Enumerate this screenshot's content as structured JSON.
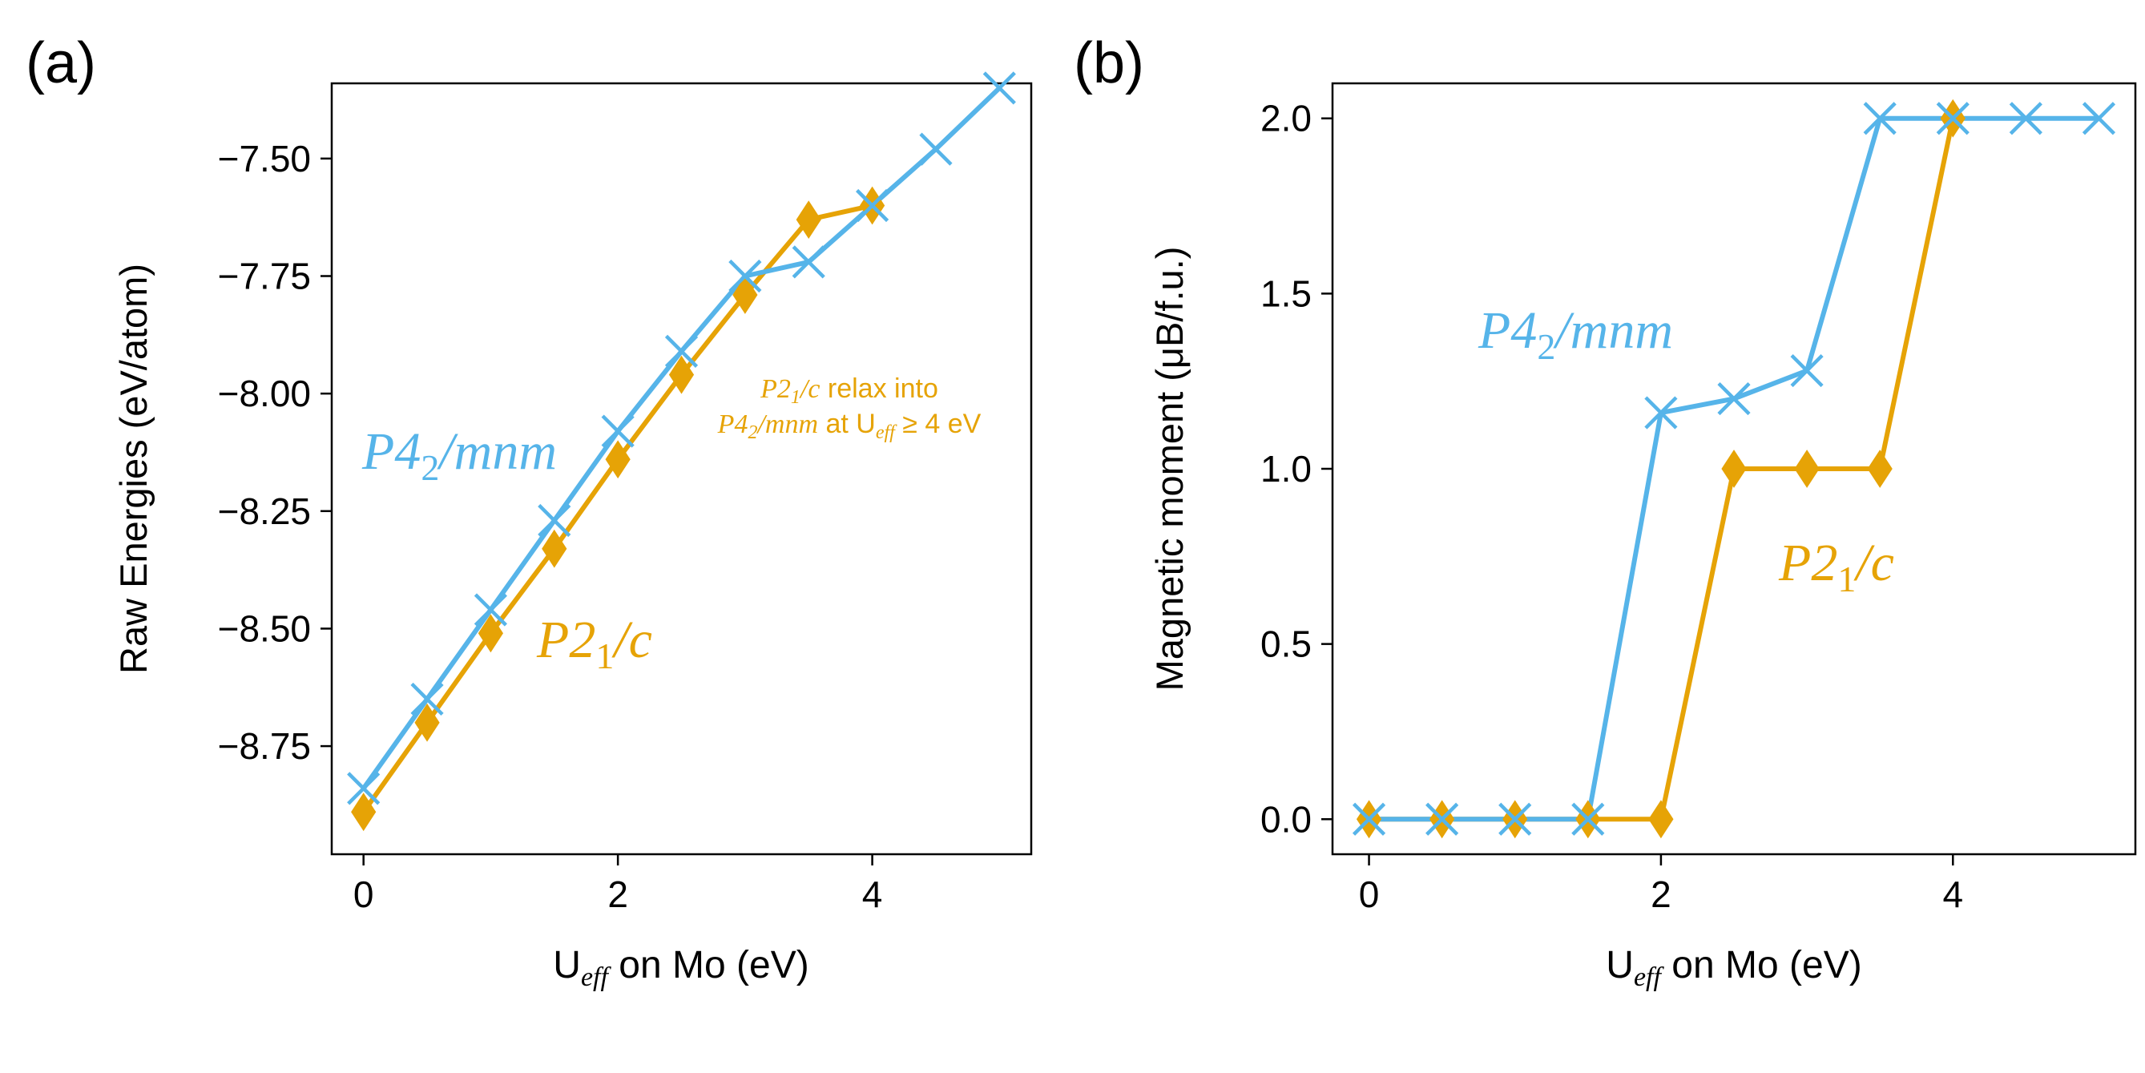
{
  "colors": {
    "p42": "#56b4e9",
    "p21": "#e6a306",
    "axis": "#000000"
  },
  "panels": [
    {
      "label": "(a)",
      "chart_data": {
        "type": "line",
        "xlabel": "U",
        "xlabel_sub": "eff",
        "xlabel_rest": " on Mo (eV)",
        "ylabel": "Raw Energies (eV/atom)",
        "xlim": [
          -0.25,
          5.25
        ],
        "ylim": [
          -8.98,
          -7.34
        ],
        "xticks": [
          0,
          2,
          4
        ],
        "xtick_labels": [
          "0",
          "2",
          "4"
        ],
        "yticks": [
          -7.5,
          -7.75,
          -8.0,
          -8.25,
          -8.5,
          -8.75
        ],
        "ytick_labels": [
          "−7.50",
          "−7.75",
          "−8.00",
          "−8.25",
          "−8.50",
          "−8.75"
        ],
        "series": [
          {
            "name": "P42/mnm",
            "marker": "x",
            "color_key": "p42",
            "x": [
              0,
              0.5,
              1,
              1.5,
              2,
              2.5,
              3,
              3.5,
              4,
              4.5,
              5
            ],
            "y": [
              -8.84,
              -8.65,
              -8.46,
              -8.27,
              -8.08,
              -7.91,
              -7.75,
              -7.72,
              -7.6,
              -7.48,
              -7.35
            ]
          },
          {
            "name": "P21/c",
            "marker": "d",
            "color_key": "p21",
            "x": [
              0,
              0.5,
              1,
              1.5,
              2,
              2.5,
              3,
              3.5,
              4
            ],
            "y": [
              -8.89,
              -8.7,
              -8.51,
              -8.33,
              -8.14,
              -7.96,
              -7.79,
              -7.63,
              -7.6
            ]
          }
        ]
      },
      "annotations": {
        "p42_label": {
          "main": "P4",
          "sub": "2",
          "rest": "/mnm"
        },
        "p21_label": {
          "main": "P2",
          "sub": "1",
          "rest": "/c"
        },
        "relax_note": {
          "line1_main": "P2",
          "line1_sub": "1",
          "line1_it_rest": "/c",
          "line1_text": " relax into",
          "line2_main": "P4",
          "line2_sub": "2",
          "line2_it_rest": "/mnm",
          "line2_text": " at U",
          "line2_sub2": "eff",
          "line2_tail": " ≥ 4 eV"
        }
      }
    },
    {
      "label": "(b)",
      "chart_data": {
        "type": "line",
        "xlabel": "U",
        "xlabel_sub": "eff",
        "xlabel_rest": " on Mo (eV)",
        "ylabel": "Magnetic moment (μB/f.u.)",
        "xlim": [
          -0.25,
          5.25
        ],
        "ylim": [
          -0.1,
          2.1
        ],
        "xticks": [
          0,
          2,
          4
        ],
        "xtick_labels": [
          "0",
          "2",
          "4"
        ],
        "yticks": [
          0.0,
          0.5,
          1.0,
          1.5,
          2.0
        ],
        "ytick_labels": [
          "0.0",
          "0.5",
          "1.0",
          "1.5",
          "2.0"
        ],
        "series": [
          {
            "name": "P42/mnm",
            "marker": "x",
            "color_key": "p42",
            "x": [
              0,
              0.5,
              1,
              1.5,
              2,
              2.5,
              3,
              3.5,
              4,
              4.5,
              5
            ],
            "y": [
              0,
              0,
              0,
              0,
              1.16,
              1.2,
              1.28,
              2.0,
              2.0,
              2.0,
              2.0
            ]
          },
          {
            "name": "P21/c",
            "marker": "d",
            "color_key": "p21",
            "x": [
              0,
              0.5,
              1,
              1.5,
              2,
              2.5,
              3,
              3.5,
              4
            ],
            "y": [
              0,
              0,
              0,
              0,
              0,
              1.0,
              1.0,
              1.0,
              2.0
            ]
          }
        ]
      },
      "annotations": {
        "p42_label": {
          "main": "P4",
          "sub": "2",
          "rest": "/mnm"
        },
        "p21_label": {
          "main": "P2",
          "sub": "1",
          "rest": "/c"
        }
      }
    }
  ]
}
